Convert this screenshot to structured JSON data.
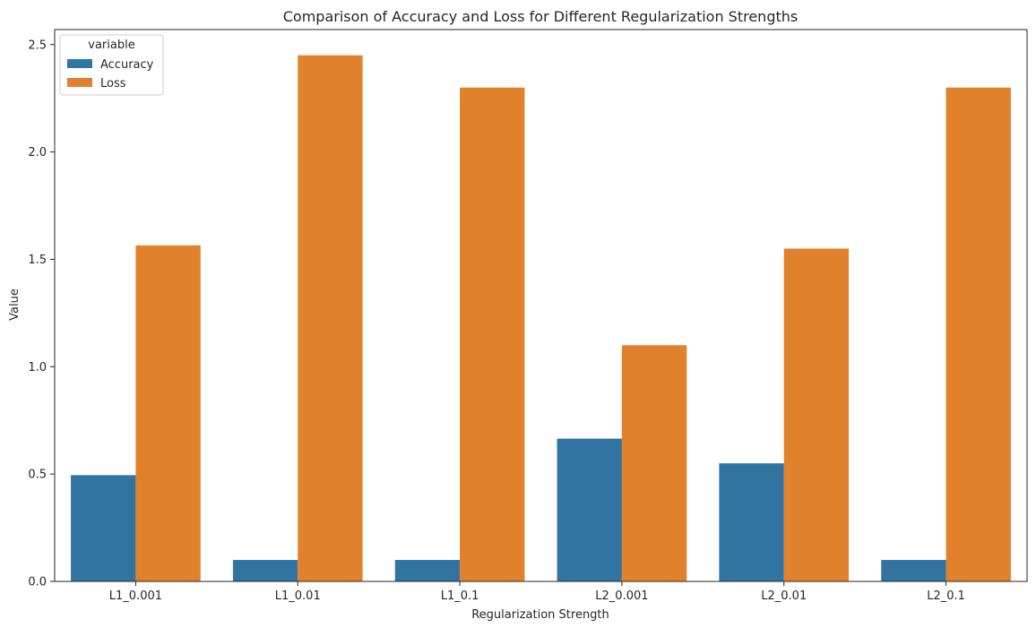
{
  "chart_data": {
    "type": "bar",
    "title": "Comparison of Accuracy and Loss for Different Regularization Strengths",
    "xlabel": "Regularization Strength",
    "ylabel": "Value",
    "categories": [
      "L1_0.001",
      "L1_0.01",
      "L1_0.1",
      "L2_0.001",
      "L2_0.01",
      "L2_0.1"
    ],
    "series": [
      {
        "name": "Accuracy",
        "color": "#3274a1",
        "values": [
          0.495,
          0.1,
          0.1,
          0.665,
          0.55,
          0.1
        ]
      },
      {
        "name": "Loss",
        "color": "#e1812c",
        "values": [
          1.565,
          2.45,
          2.3,
          1.1,
          1.55,
          2.3
        ]
      }
    ],
    "ylim": [
      0,
      2.57
    ],
    "yticks": [
      0.0,
      0.5,
      1.0,
      1.5,
      2.0,
      2.5
    ],
    "ytick_labels": [
      "0.0",
      "0.5",
      "1.0",
      "1.5",
      "2.0",
      "2.5"
    ],
    "legend": {
      "title": "variable",
      "placement": "top-left"
    },
    "grid": false
  }
}
